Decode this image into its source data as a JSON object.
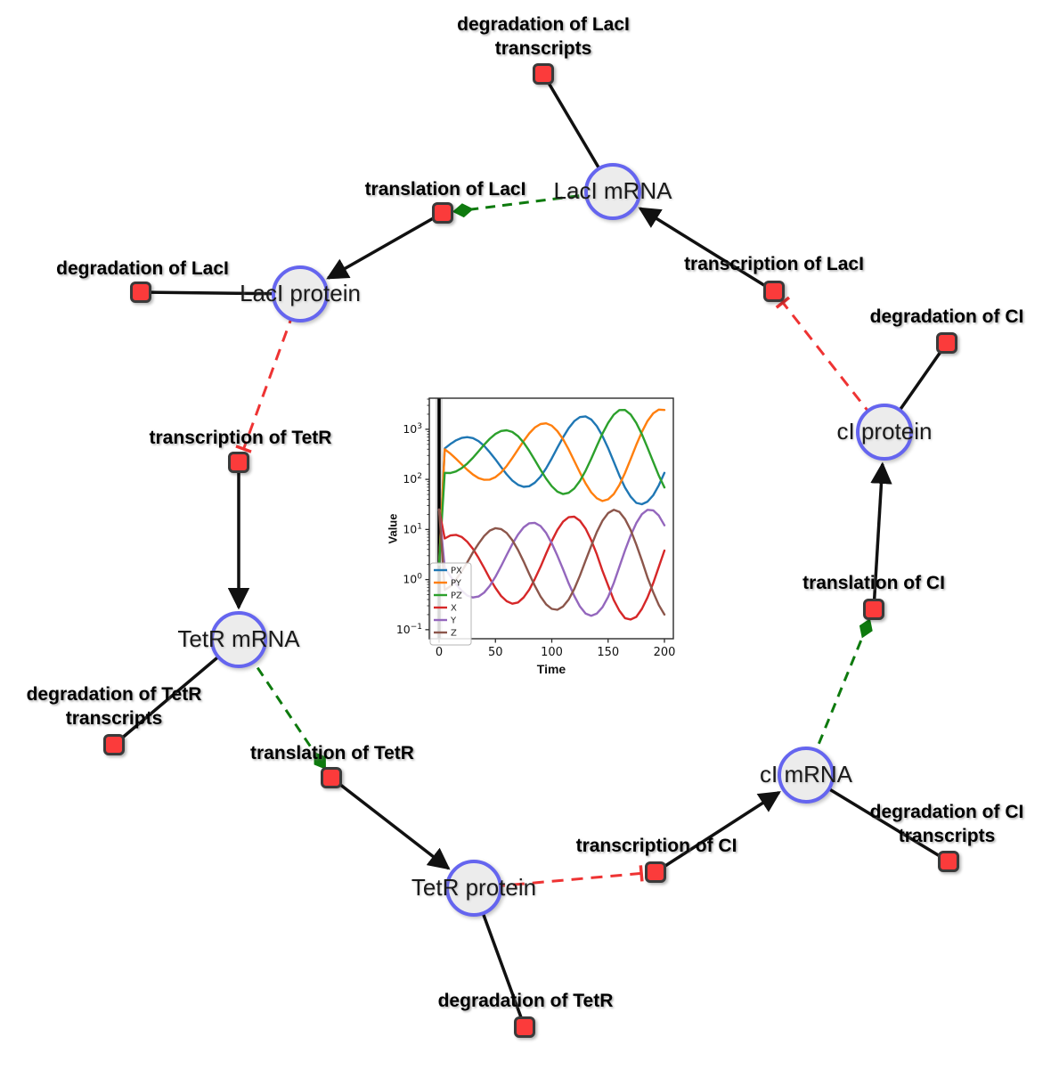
{
  "diagram": {
    "species": [
      {
        "id": "laci-mrna",
        "label": "LacI mRNA"
      },
      {
        "id": "laci-protein",
        "label": "LacI protein"
      },
      {
        "id": "tetr-mrna",
        "label": "TetR mRNA"
      },
      {
        "id": "tetr-protein",
        "label": "TetR protein"
      },
      {
        "id": "ci-mrna",
        "label": "cI mRNA"
      },
      {
        "id": "ci-protein",
        "label": "cI protein"
      }
    ],
    "reactions": [
      {
        "id": "deg-laci-transcripts",
        "label": "degradation of LacI\ntranscripts"
      },
      {
        "id": "translation-laci",
        "label": "translation of LacI"
      },
      {
        "id": "deg-laci",
        "label": "degradation of LacI"
      },
      {
        "id": "transcription-tetr",
        "label": "transcription of TetR"
      },
      {
        "id": "deg-tetr-transcripts",
        "label": "degradation of TetR\ntranscripts"
      },
      {
        "id": "translation-tetr",
        "label": "translation of TetR"
      },
      {
        "id": "deg-tetr",
        "label": "degradation of TetR"
      },
      {
        "id": "transcription-ci",
        "label": "transcription of CI"
      },
      {
        "id": "deg-ci-transcripts",
        "label": "degradation of CI\ntranscripts"
      },
      {
        "id": "translation-ci",
        "label": "translation of CI"
      },
      {
        "id": "deg-ci",
        "label": "degradation of CI"
      },
      {
        "id": "transcription-laci",
        "label": "transcription of LacI"
      }
    ],
    "edges": [
      {
        "from": "laci-mrna",
        "to": "deg-laci-transcripts",
        "type": "consumption"
      },
      {
        "from": "transcription-laci",
        "to": "laci-mrna",
        "type": "production"
      },
      {
        "from": "laci-mrna",
        "to": "translation-laci",
        "type": "modifier"
      },
      {
        "from": "translation-laci",
        "to": "laci-protein",
        "type": "production"
      },
      {
        "from": "laci-protein",
        "to": "deg-laci",
        "type": "consumption"
      },
      {
        "from": "laci-protein",
        "to": "transcription-tetr",
        "type": "inhibition"
      },
      {
        "from": "transcription-tetr",
        "to": "tetr-mrna",
        "type": "production"
      },
      {
        "from": "tetr-mrna",
        "to": "deg-tetr-transcripts",
        "type": "consumption"
      },
      {
        "from": "tetr-mrna",
        "to": "translation-tetr",
        "type": "modifier"
      },
      {
        "from": "translation-tetr",
        "to": "tetr-protein",
        "type": "production"
      },
      {
        "from": "tetr-protein",
        "to": "deg-tetr",
        "type": "consumption"
      },
      {
        "from": "tetr-protein",
        "to": "transcription-ci",
        "type": "inhibition"
      },
      {
        "from": "transcription-ci",
        "to": "ci-mrna",
        "type": "production"
      },
      {
        "from": "ci-mrna",
        "to": "deg-ci-transcripts",
        "type": "consumption"
      },
      {
        "from": "ci-mrna",
        "to": "translation-ci",
        "type": "modifier"
      },
      {
        "from": "translation-ci",
        "to": "ci-protein",
        "type": "production"
      },
      {
        "from": "ci-protein",
        "to": "deg-ci",
        "type": "consumption"
      },
      {
        "from": "ci-protein",
        "to": "transcription-laci",
        "type": "inhibition"
      }
    ],
    "colors": {
      "species_fill": "#ececec",
      "species_border": "#6565ef",
      "reaction_fill": "#fb3b3b",
      "reaction_border": "#3a3a3a",
      "edge_black": "#111111",
      "edge_modifier_green": "#0e7a0e",
      "edge_inhibition_red": "#ee3333"
    }
  },
  "chart_data": {
    "type": "line",
    "title": "",
    "xlabel": "Time",
    "ylabel": "Value",
    "yscale": "log",
    "xlim": [
      -8.7,
      207.9
    ],
    "ylim": [
      0.066,
      4170
    ],
    "x_ticks": [
      0,
      50,
      100,
      150,
      200
    ],
    "y_tick_exponents": [
      -1,
      0,
      1,
      2,
      3
    ],
    "grid": false,
    "legend_position": "lower left",
    "annotations": [
      {
        "type": "vline",
        "x": 0,
        "color": "#000000"
      }
    ],
    "x": [
      0,
      5,
      10,
      15,
      20,
      25,
      30,
      35,
      40,
      45,
      50,
      55,
      60,
      65,
      70,
      75,
      80,
      85,
      90,
      95,
      100,
      105,
      110,
      115,
      120,
      125,
      130,
      135,
      140,
      145,
      150,
      155,
      160,
      165,
      170,
      175,
      180,
      185,
      190,
      195,
      200
    ],
    "series": [
      {
        "name": "PX",
        "color": "#1f77b4",
        "values": [
          2,
          415,
          508,
          601,
          671,
          698,
          665,
          579,
          466,
          348,
          250,
          176,
          126,
          95,
          78,
          71,
          73,
          86,
          113,
          166,
          262,
          428,
          690,
          1052,
          1455,
          1754,
          1807,
          1570,
          1154,
          736,
          420,
          225,
          120,
          69,
          45,
          34,
          32,
          36,
          48,
          76,
          135
        ]
      },
      {
        "name": "PY",
        "color": "#ff7f0e",
        "values": [
          2,
          400,
          327,
          258,
          200,
          156,
          125,
          106,
          98,
          99,
          111,
          137,
          185,
          266,
          394,
          582,
          826,
          1084,
          1274,
          1316,
          1180,
          918,
          632,
          394,
          233,
          137,
          83,
          55,
          42,
          37,
          40,
          51,
          77,
          134,
          255,
          489,
          889,
          1462,
          2080,
          2473,
          2427
        ]
      },
      {
        "name": "PZ",
        "color": "#2ca02c",
        "values": [
          2,
          135,
          134,
          144,
          167,
          207,
          270,
          364,
          492,
          647,
          807,
          925,
          957,
          885,
          729,
          542,
          371,
          242,
          155,
          103,
          73,
          57,
          51,
          54,
          66,
          93,
          149,
          258,
          464,
          817,
          1343,
          1954,
          2417,
          2427,
          1968,
          1337,
          794,
          429,
          224,
          119,
          69
        ]
      },
      {
        "name": "X",
        "color": "#d62728",
        "values": [
          25,
          6.6,
          7.6,
          7.8,
          7.1,
          5.7,
          4.1,
          2.7,
          1.7,
          1.05,
          0.68,
          0.47,
          0.37,
          0.33,
          0.35,
          0.44,
          0.63,
          1.03,
          1.8,
          3.3,
          5.9,
          9.8,
          14.3,
          17.6,
          18,
          15,
          10.4,
          6.1,
          3.2,
          1.5,
          0.76,
          0.39,
          0.24,
          0.17,
          0.16,
          0.18,
          0.26,
          0.44,
          0.85,
          1.8,
          3.8
        ]
      },
      {
        "name": "Y",
        "color": "#9467bd",
        "values": [
          25,
          1.74,
          1.17,
          0.81,
          0.6,
          0.48,
          0.44,
          0.46,
          0.55,
          0.75,
          1.14,
          1.85,
          3.1,
          5.1,
          7.9,
          11,
          13.3,
          13.6,
          11.7,
          8.5,
          5.3,
          3,
          1.6,
          0.84,
          0.47,
          0.29,
          0.21,
          0.19,
          0.21,
          0.28,
          0.45,
          0.85,
          1.8,
          3.8,
          7.6,
          13.4,
          20.2,
          24.7,
          24.1,
          18.9,
          12.1
        ]
      },
      {
        "name": "Z",
        "color": "#8c564b",
        "values": [
          25,
          0.62,
          0.74,
          1,
          1.45,
          2.2,
          3.5,
          5.2,
          7.4,
          9.5,
          10.6,
          10.2,
          8.5,
          6.1,
          3.9,
          2.3,
          1.3,
          0.75,
          0.46,
          0.32,
          0.26,
          0.25,
          0.29,
          0.4,
          0.65,
          1.2,
          2.4,
          4.7,
          8.9,
          14.9,
          21.3,
          24.7,
          22.5,
          16.2,
          9.7,
          5,
          2.4,
          1.1,
          0.56,
          0.31,
          0.2
        ]
      }
    ]
  }
}
